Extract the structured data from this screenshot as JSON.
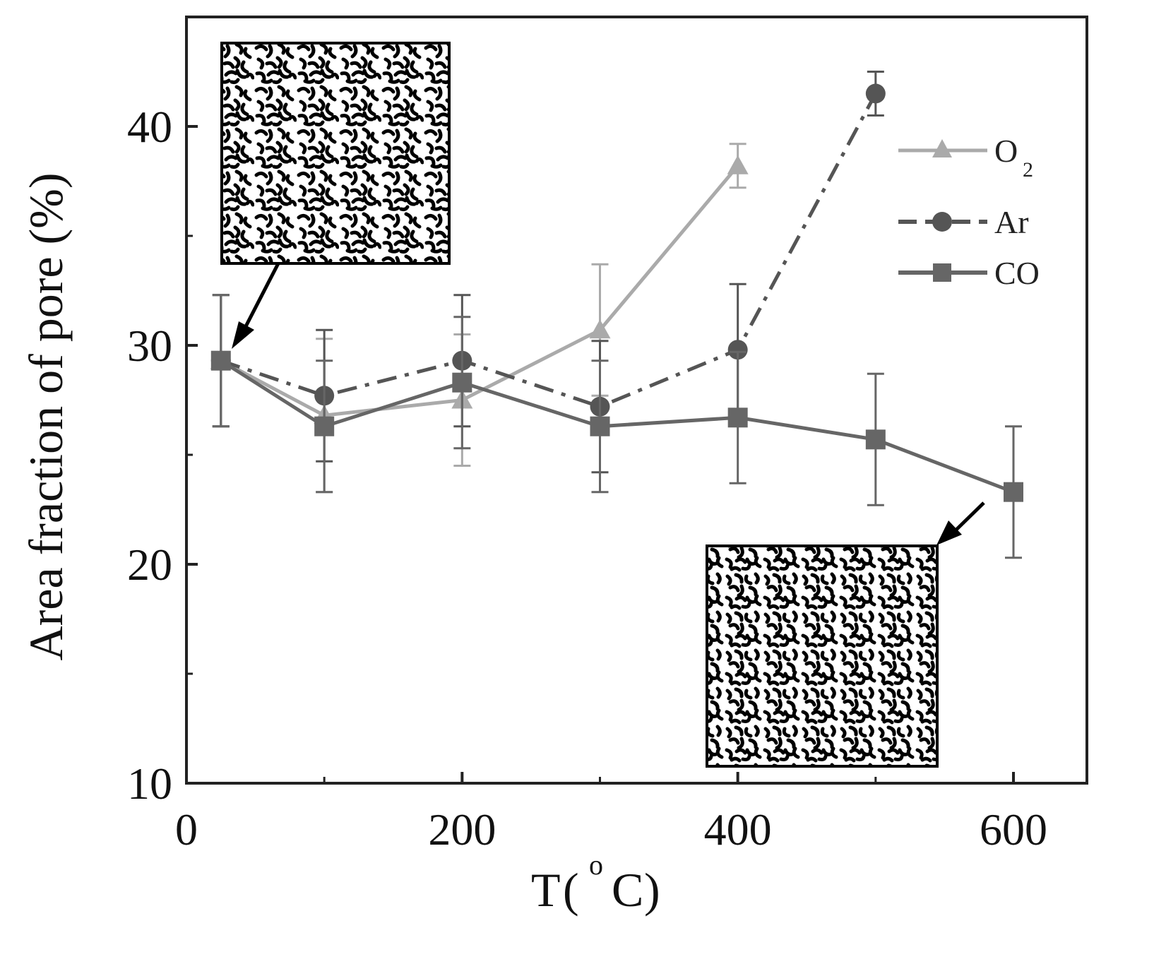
{
  "chart_data": {
    "type": "line",
    "xlabel": "T",
    "xlabel_unit": "C",
    "xlabel_unit_prefix": "o",
    "ylabel": "Area fraction of pore (%)",
    "xlim": [
      0,
      650
    ],
    "ylim": [
      10,
      45
    ],
    "x_ticks": [
      0,
      200,
      400,
      600
    ],
    "x_tick_labels": [
      "0",
      "200",
      "400",
      "600"
    ],
    "y_ticks": [
      10,
      20,
      30,
      40
    ],
    "y_tick_labels": [
      "10",
      "20",
      "30",
      "40"
    ],
    "legend_position": "top-right",
    "series": [
      {
        "name": "O",
        "name_subscript": "2",
        "marker": "triangle",
        "line_style": "solid",
        "color": "#aaaaaa",
        "x": [
          25,
          100,
          200,
          300,
          400
        ],
        "y": [
          29.3,
          26.8,
          27.5,
          30.7,
          38.2
        ],
        "err": [
          3.0,
          3.5,
          3.0,
          3.0,
          1.0
        ]
      },
      {
        "name": "Ar",
        "marker": "circle",
        "line_style": "dash-dot",
        "color": "#555555",
        "x": [
          25,
          100,
          200,
          300,
          400,
          500
        ],
        "y": [
          29.3,
          27.7,
          29.3,
          27.2,
          29.8,
          41.5
        ],
        "err": [
          3.0,
          3.0,
          3.0,
          3.0,
          3.0,
          1.0
        ]
      },
      {
        "name": "CO",
        "marker": "square",
        "line_style": "solid",
        "color": "#666666",
        "x": [
          25,
          100,
          200,
          300,
          400,
          500,
          600
        ],
        "y": [
          29.3,
          26.3,
          28.3,
          26.3,
          26.7,
          25.7,
          23.3
        ],
        "err": [
          3.0,
          3.0,
          3.0,
          3.0,
          3.0,
          3.0,
          3.0
        ]
      }
    ],
    "insets": [
      {
        "description": "pore micrograph",
        "points_to": {
          "x": 25,
          "y": 29.3
        }
      },
      {
        "description": "pore micrograph",
        "points_to": {
          "x": 580,
          "y": 23.3
        }
      }
    ]
  }
}
